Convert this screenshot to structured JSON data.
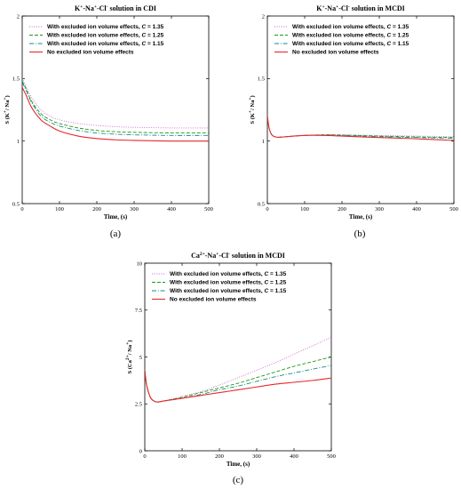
{
  "figure": {
    "panel_labels": [
      "(a)",
      "(b)",
      "(c)"
    ]
  },
  "legend_colors": [
    "#cc66cc",
    "#1a9a1a",
    "#1a8a8a",
    "#e8282a"
  ],
  "chart_data": [
    {
      "type": "line",
      "title": {
        "ion": "K",
        "ion_charge": "+",
        "rest": "-Na",
        "na_charge": "+",
        "anion": "-Cl",
        "anion_charge": "-",
        "context": " solution in CDI"
      },
      "title_text": "K+-Na+-Cl- solution in CDI",
      "xlabel": "Time, (s)",
      "ylabel": "S (K+/ Na+)",
      "ylabel_parts": {
        "pre": "S (K",
        "sup1": "+",
        "mid": "/ Na",
        "sup2": "+",
        "post": ")"
      },
      "xlim": [
        0,
        500
      ],
      "ylim": [
        0.5,
        2
      ],
      "xticks": [
        "0",
        "100",
        "200",
        "300",
        "400",
        "500"
      ],
      "yticks": [
        "0.5",
        "1",
        "1.5",
        "2"
      ],
      "ytick_values": [
        0.5,
        1,
        1.5,
        2
      ],
      "legend_placement": "top-left",
      "series": [
        {
          "name": "With excluded ion volume effects, C = 1.35",
          "name_prefix": "With excluded ion volume effects, ",
          "name_var": "C",
          "name_suffix": " = 1.35",
          "style": "dotted",
          "color": "#cc66cc",
          "x": [
            0,
            10,
            25,
            50,
            75,
            100,
            150,
            200,
            250,
            300,
            400,
            500
          ],
          "y": [
            1.5,
            1.44,
            1.35,
            1.25,
            1.2,
            1.17,
            1.14,
            1.125,
            1.115,
            1.11,
            1.105,
            1.105
          ]
        },
        {
          "name": "With excluded ion volume effects, C = 1.25",
          "name_prefix": "With excluded ion volume effects, ",
          "name_var": "C",
          "name_suffix": " = 1.25",
          "style": "dashed",
          "color": "#1a9a1a",
          "x": [
            0,
            10,
            25,
            50,
            75,
            100,
            150,
            200,
            250,
            300,
            400,
            500
          ],
          "y": [
            1.48,
            1.42,
            1.32,
            1.22,
            1.17,
            1.14,
            1.105,
            1.085,
            1.075,
            1.07,
            1.065,
            1.065
          ]
        },
        {
          "name": "With excluded ion volume effects, C = 1.15",
          "name_prefix": "With excluded ion volume effects, ",
          "name_var": "C",
          "name_suffix": " = 1.15",
          "style": "dashdot",
          "color": "#1a8a8a",
          "x": [
            0,
            10,
            25,
            50,
            75,
            100,
            150,
            200,
            250,
            300,
            400,
            500
          ],
          "y": [
            1.47,
            1.41,
            1.31,
            1.2,
            1.15,
            1.12,
            1.085,
            1.065,
            1.055,
            1.05,
            1.045,
            1.045
          ]
        },
        {
          "name": "No excluded ion volume effects",
          "style": "solid",
          "color": "#e8282a",
          "x": [
            0,
            10,
            25,
            50,
            75,
            100,
            150,
            200,
            250,
            300,
            400,
            500
          ],
          "y": [
            1.43,
            1.37,
            1.27,
            1.17,
            1.12,
            1.08,
            1.04,
            1.02,
            1.01,
            1.005,
            1.0,
            1.0
          ]
        }
      ]
    },
    {
      "type": "line",
      "title": {
        "ion": "K",
        "ion_charge": "+",
        "rest": "-Na",
        "na_charge": "+",
        "anion": "-Cl",
        "anion_charge": "-",
        "context": " solution in MCDI"
      },
      "title_text": "K+-Na+-Cl- solution in MCDI",
      "xlabel": "Time, (s)",
      "ylabel": "S (K+/ Na+)",
      "ylabel_parts": {
        "pre": "S (K",
        "sup1": "+",
        "mid": "/ Na",
        "sup2": "+",
        "post": ")"
      },
      "xlim": [
        0,
        500
      ],
      "ylim": [
        0.5,
        2
      ],
      "xticks": [
        "0",
        "100",
        "200",
        "300",
        "400",
        "500"
      ],
      "yticks": [
        "0.5",
        "1",
        "1.5",
        "2"
      ],
      "ytick_values": [
        0.5,
        1,
        1.5,
        2
      ],
      "legend_placement": "top-left",
      "series": [
        {
          "name": "With excluded ion volume effects, C = 1.35",
          "name_prefix": "With excluded ion volume effects, ",
          "name_var": "C",
          "name_suffix": " = 1.35",
          "style": "dotted",
          "color": "#cc66cc",
          "x": [
            0,
            5,
            12,
            20,
            30,
            50,
            100,
            150,
            200,
            300,
            400,
            500
          ],
          "y": [
            1.2,
            1.1,
            1.05,
            1.035,
            1.03,
            1.035,
            1.045,
            1.05,
            1.05,
            1.045,
            1.04,
            1.035
          ]
        },
        {
          "name": "With excluded ion volume effects, C = 1.25",
          "name_prefix": "With excluded ion volume effects, ",
          "name_var": "C",
          "name_suffix": " = 1.25",
          "style": "dashed",
          "color": "#1a9a1a",
          "x": [
            0,
            5,
            12,
            20,
            30,
            50,
            100,
            150,
            200,
            300,
            400,
            500
          ],
          "y": [
            1.2,
            1.1,
            1.05,
            1.035,
            1.03,
            1.035,
            1.045,
            1.05,
            1.048,
            1.04,
            1.033,
            1.028
          ]
        },
        {
          "name": "With excluded ion volume effects, C = 1.15",
          "name_prefix": "With excluded ion volume effects, ",
          "name_var": "C",
          "name_suffix": " = 1.15",
          "style": "dashdot",
          "color": "#1a8a8a",
          "x": [
            0,
            5,
            12,
            20,
            30,
            50,
            100,
            150,
            200,
            300,
            400,
            500
          ],
          "y": [
            1.2,
            1.1,
            1.05,
            1.035,
            1.03,
            1.035,
            1.045,
            1.048,
            1.045,
            1.035,
            1.028,
            1.022
          ]
        },
        {
          "name": "No excluded ion volume effects",
          "style": "solid",
          "color": "#e8282a",
          "x": [
            0,
            5,
            12,
            20,
            30,
            50,
            100,
            150,
            200,
            300,
            400,
            500
          ],
          "y": [
            1.2,
            1.1,
            1.05,
            1.035,
            1.03,
            1.035,
            1.045,
            1.045,
            1.04,
            1.028,
            1.018,
            1.005
          ]
        }
      ]
    },
    {
      "type": "line",
      "title": {
        "ion": "Ca",
        "ion_charge": "2+",
        "rest": "-Na",
        "na_charge": "+",
        "anion": "-Cl",
        "anion_charge": "-",
        "context": " solution in MCDI"
      },
      "title_text": "Ca2+-Na+-Cl- solution in MCDI",
      "xlabel": "Time, (s)",
      "ylabel": "S (Ca2+/ Na+)",
      "ylabel_parts": {
        "pre": "S (Ca",
        "sup1": "2+",
        "mid": "/ Na",
        "sup2": "+",
        "post": ")"
      },
      "xlim": [
        0,
        500
      ],
      "ylim": [
        0,
        10
      ],
      "xticks": [
        "0",
        "100",
        "200",
        "300",
        "400",
        "500"
      ],
      "yticks": [
        "0",
        "2.5",
        "5",
        "7.5",
        "10"
      ],
      "ytick_values": [
        0,
        2.5,
        5,
        7.5,
        10
      ],
      "legend_placement": "top-left",
      "series": [
        {
          "name": "With excluded ion volume effects, C = 1.35",
          "name_prefix": "With excluded ion volume effects, ",
          "name_var": "C",
          "name_suffix": " = 1.35",
          "style": "dotted",
          "color": "#cc66cc",
          "x": [
            0,
            5,
            15,
            25,
            35,
            50,
            100,
            150,
            200,
            250,
            300,
            350,
            400,
            450,
            500
          ],
          "y": [
            4.3,
            3.5,
            2.85,
            2.65,
            2.6,
            2.65,
            2.9,
            3.15,
            3.5,
            3.9,
            4.3,
            4.7,
            5.15,
            5.6,
            6.05
          ]
        },
        {
          "name": "With excluded ion volume effects, C = 1.25",
          "name_prefix": "With excluded ion volume effects, ",
          "name_var": "C",
          "name_suffix": " = 1.25",
          "style": "dashed",
          "color": "#1a9a1a",
          "x": [
            0,
            5,
            15,
            25,
            35,
            50,
            100,
            150,
            200,
            250,
            300,
            350,
            400,
            450,
            500
          ],
          "y": [
            4.3,
            3.5,
            2.85,
            2.65,
            2.6,
            2.65,
            2.85,
            3.1,
            3.35,
            3.6,
            3.9,
            4.2,
            4.5,
            4.75,
            5.0
          ]
        },
        {
          "name": "With excluded ion volume effects, C = 1.15",
          "name_prefix": "With excluded ion volume effects, ",
          "name_var": "C",
          "name_suffix": " = 1.15",
          "style": "dashdot",
          "color": "#1a8a8a",
          "x": [
            0,
            5,
            15,
            25,
            35,
            50,
            100,
            150,
            200,
            250,
            300,
            350,
            400,
            450,
            500
          ],
          "y": [
            4.3,
            3.5,
            2.85,
            2.65,
            2.6,
            2.65,
            2.8,
            3.0,
            3.25,
            3.45,
            3.7,
            3.95,
            4.15,
            4.35,
            4.55
          ]
        },
        {
          "name": "No excluded ion volume effects",
          "style": "solid",
          "color": "#e8282a",
          "x": [
            0,
            5,
            15,
            25,
            35,
            50,
            100,
            150,
            200,
            250,
            300,
            350,
            400,
            450,
            500
          ],
          "y": [
            4.3,
            3.5,
            2.85,
            2.65,
            2.6,
            2.65,
            2.8,
            2.95,
            3.1,
            3.25,
            3.4,
            3.55,
            3.65,
            3.75,
            3.88
          ]
        }
      ]
    }
  ]
}
